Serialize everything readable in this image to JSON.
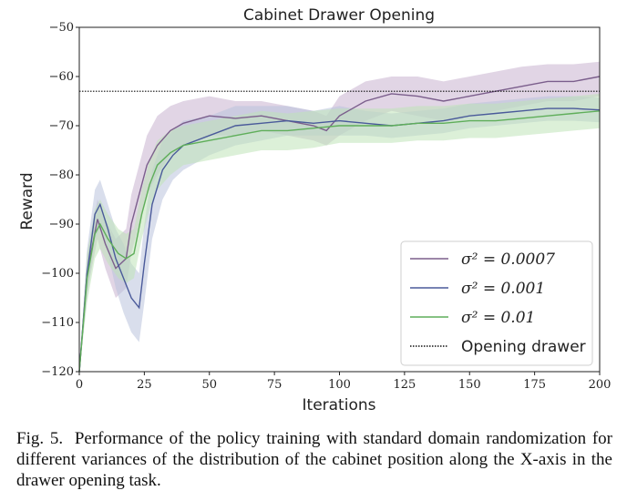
{
  "chart_data": {
    "type": "line",
    "title": "Cabinet Drawer Opening",
    "xlabel": "Iterations",
    "ylabel": "Reward",
    "xlim": [
      0,
      200
    ],
    "ylim": [
      -120,
      -50
    ],
    "xticks": [
      "0",
      "25",
      "50",
      "75",
      "100",
      "125",
      "150",
      "175",
      "200"
    ],
    "yticks": [
      "−120",
      "−110",
      "−100",
      "−90",
      "−80",
      "−70",
      "−60",
      "−50"
    ],
    "grid": false,
    "legend_position": "lower-right",
    "reference_line": {
      "name": "Opening drawer",
      "y": -63,
      "style": "dotted",
      "color": "#111111"
    },
    "series": [
      {
        "name": "σ² = 0.0007",
        "color": "#7b5e8c",
        "band_color": "#c9b3cf",
        "x": [
          0,
          3,
          7,
          10,
          14,
          18,
          20,
          23,
          26,
          30,
          35,
          40,
          50,
          60,
          70,
          80,
          90,
          95,
          100,
          110,
          120,
          130,
          140,
          150,
          160,
          170,
          180,
          190,
          200
        ],
        "y": [
          -120,
          -100,
          -89,
          -94,
          -99,
          -97,
          -90,
          -84,
          -78,
          -74,
          -71,
          -69.5,
          -68,
          -68.5,
          -68,
          -69,
          -70,
          -71,
          -68,
          -65,
          -63.5,
          -64,
          -65,
          -64,
          -63,
          -62,
          -61,
          -61,
          -60
        ],
        "band": [
          [
            -120,
            -120
          ],
          [
            -104,
            -96
          ],
          [
            -93,
            -85
          ],
          [
            -99,
            -89
          ],
          [
            -105,
            -93
          ],
          [
            -103,
            -91
          ],
          [
            -96,
            -84
          ],
          [
            -90,
            -78
          ],
          [
            -84,
            -72
          ],
          [
            -80,
            -68
          ],
          [
            -76,
            -66
          ],
          [
            -74,
            -65
          ],
          [
            -72,
            -64
          ],
          [
            -72,
            -65
          ],
          [
            -71,
            -65
          ],
          [
            -72,
            -66
          ],
          [
            -73,
            -67
          ],
          [
            -74,
            -68
          ],
          [
            -72,
            -64
          ],
          [
            -69,
            -61
          ],
          [
            -67,
            -60
          ],
          [
            -68,
            -60
          ],
          [
            -69,
            -61
          ],
          [
            -68,
            -60
          ],
          [
            -67,
            -59
          ],
          [
            -66,
            -58
          ],
          [
            -65,
            -57.5
          ],
          [
            -65,
            -57.5
          ],
          [
            -64,
            -57
          ]
        ]
      },
      {
        "name": "σ² = 0.001",
        "color": "#4a5a9a",
        "band_color": "#b9c2dd",
        "x": [
          0,
          3,
          6,
          8,
          11,
          14,
          17,
          20,
          23,
          25,
          28,
          32,
          36,
          40,
          50,
          60,
          70,
          80,
          90,
          100,
          110,
          120,
          130,
          140,
          150,
          160,
          170,
          180,
          190,
          200
        ],
        "y": [
          -120,
          -100,
          -88,
          -86,
          -91,
          -97,
          -101,
          -105,
          -107,
          -98,
          -86,
          -79,
          -76,
          -74,
          -72,
          -70,
          -69.5,
          -69,
          -69.5,
          -69,
          -69.5,
          -70,
          -69.5,
          -69,
          -68,
          -67.5,
          -67,
          -66.5,
          -66.5,
          -66.8
        ],
        "band": [
          [
            -120,
            -120
          ],
          [
            -105,
            -95
          ],
          [
            -93,
            -83
          ],
          [
            -91,
            -81
          ],
          [
            -96,
            -86
          ],
          [
            -103,
            -91
          ],
          [
            -108,
            -94
          ],
          [
            -112,
            -98
          ],
          [
            -114,
            -100
          ],
          [
            -106,
            -90
          ],
          [
            -93,
            -79
          ],
          [
            -85,
            -73
          ],
          [
            -81,
            -71
          ],
          [
            -79,
            -69
          ],
          [
            -76,
            -68
          ],
          [
            -74,
            -66
          ],
          [
            -73,
            -66
          ],
          [
            -72,
            -66
          ],
          [
            -72,
            -67
          ],
          [
            -72,
            -66
          ],
          [
            -72,
            -67
          ],
          [
            -72.5,
            -67.5
          ],
          [
            -72,
            -67
          ],
          [
            -71.5,
            -66.5
          ],
          [
            -70.5,
            -65.5
          ],
          [
            -70,
            -65
          ],
          [
            -69.5,
            -64.5
          ],
          [
            -69,
            -64
          ],
          [
            -69,
            -64
          ],
          [
            -69.3,
            -64.3
          ]
        ]
      },
      {
        "name": "σ² = 0.01",
        "color": "#5fae5a",
        "band_color": "#bfe3b8",
        "x": [
          0,
          3,
          6,
          8,
          11,
          15,
          18,
          21,
          24,
          27,
          30,
          35,
          40,
          50,
          60,
          70,
          80,
          90,
          100,
          110,
          120,
          130,
          140,
          150,
          160,
          170,
          180,
          190,
          200
        ],
        "y": [
          -120,
          -101,
          -92,
          -90,
          -93,
          -96,
          -97,
          -96,
          -88,
          -82,
          -78,
          -75.5,
          -74,
          -73,
          -72,
          -71,
          -71,
          -70.5,
          -70,
          -70,
          -70,
          -69.5,
          -69.5,
          -69,
          -69,
          -68.5,
          -68,
          -67.5,
          -67
        ],
        "band": [
          [
            -120,
            -120
          ],
          [
            -106,
            -96
          ],
          [
            -97,
            -87
          ],
          [
            -95,
            -85
          ],
          [
            -98,
            -88
          ],
          [
            -101,
            -91
          ],
          [
            -102,
            -92
          ],
          [
            -101,
            -91
          ],
          [
            -93,
            -83
          ],
          [
            -87,
            -77
          ],
          [
            -83,
            -73
          ],
          [
            -80,
            -71
          ],
          [
            -78,
            -70
          ],
          [
            -77,
            -69
          ],
          [
            -76,
            -68
          ],
          [
            -75,
            -67
          ],
          [
            -75,
            -67.5
          ],
          [
            -74.5,
            -67
          ],
          [
            -73.5,
            -66.5
          ],
          [
            -73.5,
            -66.5
          ],
          [
            -73.5,
            -66.5
          ],
          [
            -73,
            -66
          ],
          [
            -73,
            -66
          ],
          [
            -72.5,
            -65.5
          ],
          [
            -72.5,
            -65.5
          ],
          [
            -72,
            -65
          ],
          [
            -71.5,
            -64.5
          ],
          [
            -71,
            -64
          ],
          [
            -70.5,
            -63.5
          ]
        ]
      }
    ]
  },
  "caption": {
    "label": "Fig. 5.",
    "text": "Performance of the policy training with standard domain randomization for different variances of the distribution of the cabinet position along the X-axis in the drawer opening task."
  }
}
